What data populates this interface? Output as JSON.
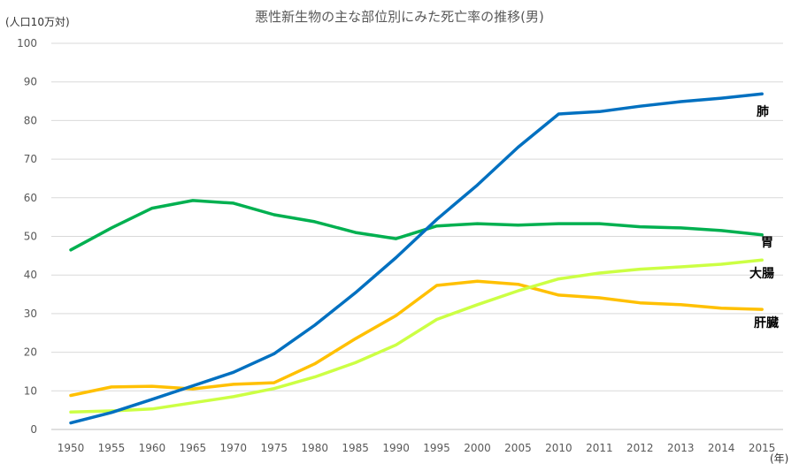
{
  "chart_data": {
    "type": "line",
    "title": "悪性新生物の主な部位別にみた死亡率の推移(男)",
    "ylabel": "(人口10万対)",
    "xlabel": "(年)",
    "ylim": [
      0,
      100
    ],
    "yticks": [
      0,
      10,
      20,
      30,
      40,
      50,
      60,
      70,
      80,
      90,
      100
    ],
    "categories": [
      "1950",
      "1955",
      "1960",
      "1965",
      "1970",
      "1975",
      "1980",
      "1985",
      "1990",
      "1995",
      "2000",
      "2005",
      "2010",
      "2011",
      "2012",
      "2013",
      "2014",
      "2015"
    ],
    "grid": true,
    "legend": "end-of-line labels",
    "series": [
      {
        "name": "肺",
        "color": "#0070C0",
        "values": [
          1.7,
          4.4,
          7.8,
          11.3,
          14.8,
          19.6,
          27.0,
          35.4,
          44.5,
          54.4,
          63.3,
          73.1,
          81.7,
          82.3,
          83.7,
          84.9,
          85.8,
          86.9
        ]
      },
      {
        "name": "胃",
        "color": "#00B050",
        "values": [
          46.5,
          52.2,
          57.3,
          59.3,
          58.6,
          55.6,
          53.8,
          51.0,
          49.4,
          52.7,
          53.3,
          52.9,
          53.3,
          53.3,
          52.5,
          52.2,
          51.5,
          50.4
        ]
      },
      {
        "name": "大腸",
        "color": "#CCFF44",
        "values": [
          4.5,
          4.8,
          5.3,
          6.9,
          8.5,
          10.6,
          13.6,
          17.3,
          21.9,
          28.5,
          32.3,
          35.9,
          39.0,
          40.5,
          41.5,
          42.1,
          42.8,
          43.9
        ]
      },
      {
        "name": "肝臓",
        "color": "#FFC000",
        "values": [
          8.8,
          11.0,
          11.2,
          10.5,
          11.7,
          12.1,
          17.0,
          23.5,
          29.5,
          37.3,
          38.4,
          37.6,
          34.8,
          34.1,
          32.8,
          32.3,
          31.4,
          31.1
        ]
      }
    ]
  }
}
